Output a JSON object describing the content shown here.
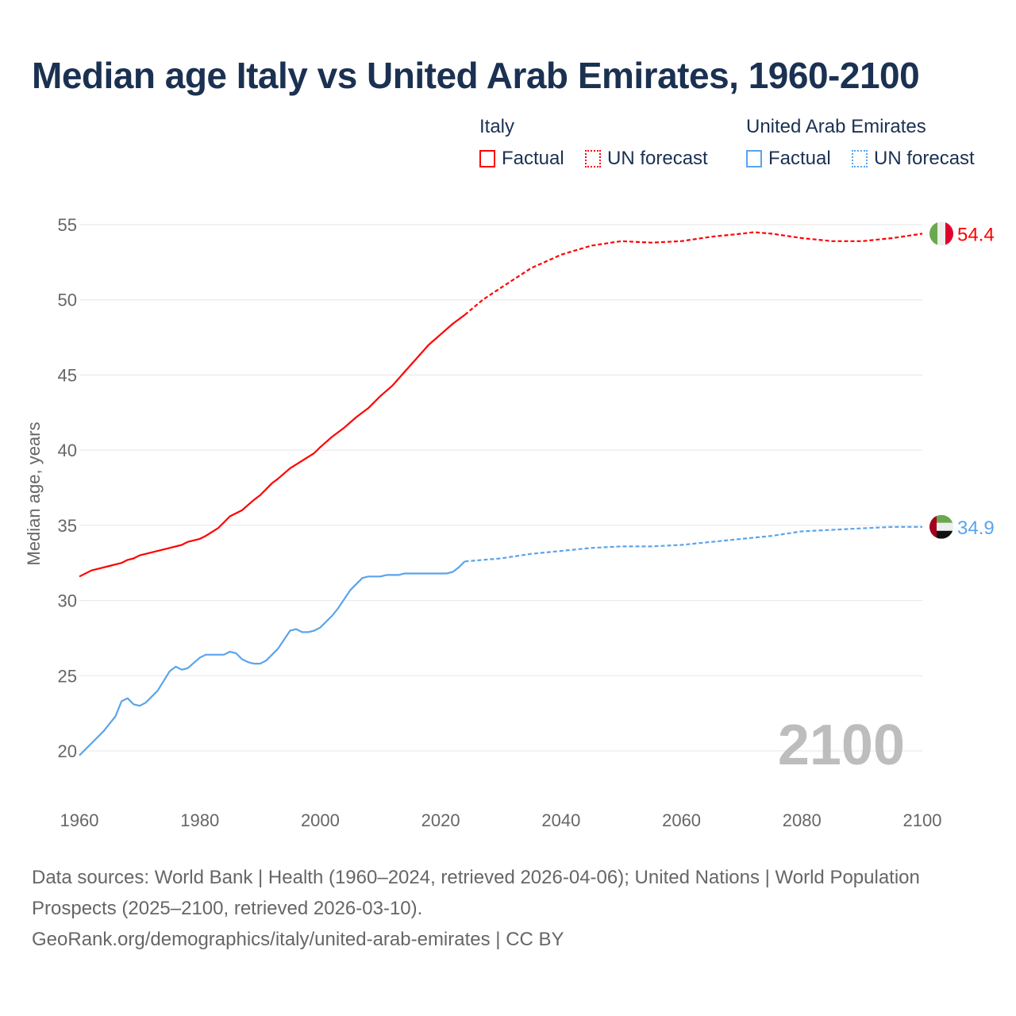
{
  "title": "Median age Italy vs United Arab Emirates, 1960-2100",
  "legend": {
    "italy": {
      "name": "Italy",
      "factual": "Factual",
      "forecast": "UN forecast",
      "color": "#ff0000"
    },
    "uae": {
      "name": "United Arab Emirates",
      "factual": "Factual",
      "forecast": "UN forecast",
      "color": "#5aa4ec"
    }
  },
  "footer": {
    "line1": "Data sources: World Bank | Health (1960–2024, retrieved 2026-04-06); United Nations | World Population Prospects (2025–2100, retrieved 2026-03-10).",
    "line2": "GeoRank.org/demographics/italy/united-arab-emirates | CC BY"
  },
  "chart_data": {
    "type": "line",
    "title": "Median age Italy vs United Arab Emirates, 1960-2100",
    "xlabel": "",
    "ylabel": "Median age, years",
    "xlim": [
      1960,
      2100
    ],
    "ylim": [
      17.5,
      57
    ],
    "xticks": [
      "1960",
      "1980",
      "2000",
      "2020",
      "2040",
      "2060",
      "2080",
      "2100"
    ],
    "yticks": [
      "20",
      "25",
      "30",
      "35",
      "40",
      "45",
      "50",
      "55"
    ],
    "year_watermark": "2100",
    "grid": true,
    "legend_position": "top-right",
    "series": [
      {
        "name": "Italy",
        "color": "#ff0000",
        "end_label": "54.4",
        "factual": [
          [
            1960,
            31.6
          ],
          [
            1962,
            32.0
          ],
          [
            1965,
            32.3
          ],
          [
            1967,
            32.5
          ],
          [
            1968,
            32.7
          ],
          [
            1969,
            32.8
          ],
          [
            1970,
            33.0
          ],
          [
            1975,
            33.5
          ],
          [
            1977,
            33.7
          ],
          [
            1978,
            33.9
          ],
          [
            1980,
            34.1
          ],
          [
            1981,
            34.3
          ],
          [
            1983,
            34.8
          ],
          [
            1984,
            35.2
          ],
          [
            1985,
            35.6
          ],
          [
            1987,
            36.0
          ],
          [
            1989,
            36.7
          ],
          [
            1990,
            37.0
          ],
          [
            1992,
            37.8
          ],
          [
            1993,
            38.1
          ],
          [
            1995,
            38.8
          ],
          [
            1997,
            39.3
          ],
          [
            1999,
            39.8
          ],
          [
            2000,
            40.2
          ],
          [
            2002,
            40.9
          ],
          [
            2004,
            41.5
          ],
          [
            2006,
            42.2
          ],
          [
            2008,
            42.8
          ],
          [
            2010,
            43.6
          ],
          [
            2012,
            44.3
          ],
          [
            2014,
            45.2
          ],
          [
            2016,
            46.1
          ],
          [
            2018,
            47.0
          ],
          [
            2020,
            47.7
          ],
          [
            2022,
            48.4
          ],
          [
            2024,
            49.0
          ]
        ],
        "forecast": [
          [
            2024,
            49.0
          ],
          [
            2027,
            50.0
          ],
          [
            2030,
            50.8
          ],
          [
            2035,
            52.1
          ],
          [
            2040,
            53.0
          ],
          [
            2045,
            53.6
          ],
          [
            2050,
            53.9
          ],
          [
            2055,
            53.8
          ],
          [
            2060,
            53.9
          ],
          [
            2065,
            54.2
          ],
          [
            2070,
            54.4
          ],
          [
            2072,
            54.5
          ],
          [
            2075,
            54.4
          ],
          [
            2080,
            54.1
          ],
          [
            2085,
            53.9
          ],
          [
            2090,
            53.9
          ],
          [
            2095,
            54.1
          ],
          [
            2100,
            54.4
          ]
        ]
      },
      {
        "name": "United Arab Emirates",
        "color": "#5aa4ec",
        "end_label": "34.9",
        "factual": [
          [
            1960,
            19.7
          ],
          [
            1962,
            20.5
          ],
          [
            1964,
            21.3
          ],
          [
            1966,
            22.3
          ],
          [
            1967,
            23.3
          ],
          [
            1968,
            23.5
          ],
          [
            1969,
            23.1
          ],
          [
            1970,
            23.0
          ],
          [
            1971,
            23.2
          ],
          [
            1973,
            24.0
          ],
          [
            1975,
            25.3
          ],
          [
            1976,
            25.6
          ],
          [
            1977,
            25.4
          ],
          [
            1978,
            25.5
          ],
          [
            1980,
            26.2
          ],
          [
            1981,
            26.4
          ],
          [
            1984,
            26.4
          ],
          [
            1985,
            26.6
          ],
          [
            1986,
            26.5
          ],
          [
            1987,
            26.1
          ],
          [
            1988,
            25.9
          ],
          [
            1989,
            25.8
          ],
          [
            1990,
            25.8
          ],
          [
            1991,
            26.0
          ],
          [
            1993,
            26.8
          ],
          [
            1995,
            28.0
          ],
          [
            1996,
            28.1
          ],
          [
            1997,
            27.9
          ],
          [
            1998,
            27.9
          ],
          [
            1999,
            28.0
          ],
          [
            2000,
            28.2
          ],
          [
            2002,
            29.0
          ],
          [
            2003,
            29.5
          ],
          [
            2005,
            30.7
          ],
          [
            2007,
            31.5
          ],
          [
            2008,
            31.6
          ],
          [
            2010,
            31.6
          ],
          [
            2011,
            31.7
          ],
          [
            2013,
            31.7
          ],
          [
            2014,
            31.8
          ],
          [
            2021,
            31.8
          ],
          [
            2022,
            31.9
          ],
          [
            2023,
            32.2
          ],
          [
            2024,
            32.6
          ]
        ],
        "forecast": [
          [
            2024,
            32.6
          ],
          [
            2030,
            32.8
          ],
          [
            2035,
            33.1
          ],
          [
            2040,
            33.3
          ],
          [
            2045,
            33.5
          ],
          [
            2050,
            33.6
          ],
          [
            2055,
            33.6
          ],
          [
            2060,
            33.7
          ],
          [
            2065,
            33.9
          ],
          [
            2070,
            34.1
          ],
          [
            2075,
            34.3
          ],
          [
            2080,
            34.6
          ],
          [
            2085,
            34.7
          ],
          [
            2090,
            34.8
          ],
          [
            2095,
            34.9
          ],
          [
            2100,
            34.9
          ]
        ]
      }
    ]
  }
}
